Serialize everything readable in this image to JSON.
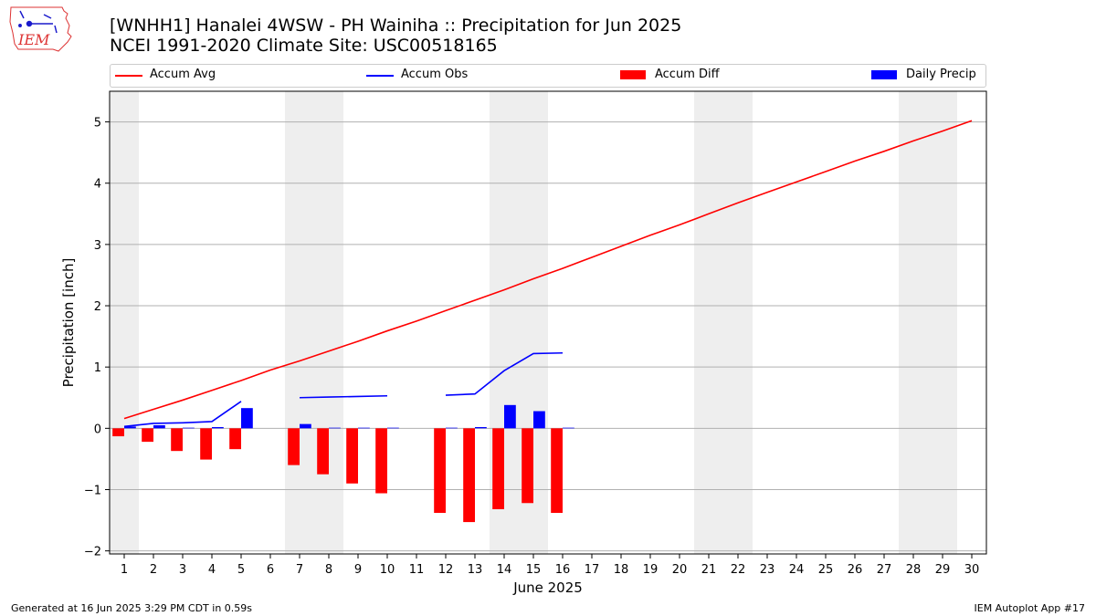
{
  "header": {
    "title_line1": "[WNHH1] Hanalei 4WSW - PH Wainiha :: Precipitation for Jun 2025",
    "title_line2": "NCEI 1991-2020 Climate Site: USC00518165",
    "logo_text": "IEM"
  },
  "footer": {
    "left": "Generated at 16 Jun 2025 3:29 PM CDT in 0.59s",
    "right": "IEM Autoplot App #17"
  },
  "colors": {
    "accum_avg": "#ff0000",
    "accum_obs": "#0000ff",
    "accum_diff": "#ff0000",
    "daily_precip": "#0000ff",
    "weekend_shade": "#eeeeee",
    "grid": "#b0b0b0"
  },
  "chart_data": {
    "type": "bar",
    "xlabel": "June 2025",
    "ylabel": "Precipitation [inch]",
    "xlim": [
      0.5,
      30.5
    ],
    "ylim": [
      -2.05,
      5.5
    ],
    "yticks": [
      -2,
      -1,
      0,
      1,
      2,
      3,
      4,
      5
    ],
    "ytick_labels": [
      "−2",
      "−1",
      "0",
      "1",
      "2",
      "3",
      "4",
      "5"
    ],
    "xticks": [
      1,
      2,
      3,
      4,
      5,
      6,
      7,
      8,
      9,
      10,
      11,
      12,
      13,
      14,
      15,
      16,
      17,
      18,
      19,
      20,
      21,
      22,
      23,
      24,
      25,
      26,
      27,
      28,
      29,
      30
    ],
    "grid": "horizontal",
    "legend_position": "top",
    "weekend_days": [
      1,
      7,
      8,
      14,
      15,
      21,
      22,
      28,
      29
    ],
    "series": [
      {
        "name": "Accum Avg",
        "kind": "line",
        "x": [
          1,
          2,
          3,
          4,
          5,
          6,
          7,
          8,
          9,
          10,
          11,
          12,
          13,
          14,
          15,
          16,
          17,
          18,
          19,
          20,
          21,
          22,
          23,
          24,
          25,
          26,
          27,
          28,
          29,
          30
        ],
        "values": [
          0.16,
          0.31,
          0.46,
          0.62,
          0.78,
          0.95,
          1.1,
          1.26,
          1.42,
          1.59,
          1.75,
          1.92,
          2.09,
          2.26,
          2.44,
          2.61,
          2.79,
          2.97,
          3.15,
          3.32,
          3.5,
          3.68,
          3.85,
          4.02,
          4.19,
          4.36,
          4.52,
          4.69,
          4.85,
          5.02
        ]
      },
      {
        "name": "Accum Obs",
        "kind": "line",
        "segments": [
          {
            "x": [
              1,
              2,
              3,
              4,
              5
            ],
            "values": [
              0.03,
              0.08,
              0.09,
              0.11,
              0.44
            ]
          },
          {
            "x": [
              7,
              8,
              9,
              10
            ],
            "values": [
              0.5,
              0.51,
              0.52,
              0.53
            ]
          },
          {
            "x": [
              12,
              13,
              14,
              15,
              16
            ],
            "values": [
              0.54,
              0.56,
              0.94,
              1.22,
              1.23
            ]
          }
        ]
      },
      {
        "name": "Accum Diff",
        "kind": "bar",
        "offset": -0.2,
        "x": [
          1,
          2,
          3,
          4,
          5,
          7,
          8,
          9,
          10,
          12,
          13,
          14,
          15,
          16
        ],
        "values": [
          -0.13,
          -0.22,
          -0.37,
          -0.51,
          -0.34,
          -0.6,
          -0.75,
          -0.9,
          -1.06,
          -1.38,
          -1.53,
          -1.32,
          -1.22,
          -1.38
        ]
      },
      {
        "name": "Daily Precip",
        "kind": "bar",
        "offset": 0.2,
        "x": [
          1,
          2,
          3,
          4,
          5,
          7,
          8,
          9,
          10,
          12,
          13,
          14,
          15,
          16
        ],
        "values": [
          0.03,
          0.05,
          0.01,
          0.02,
          0.33,
          0.07,
          0.01,
          0.01,
          0.01,
          0.01,
          0.02,
          0.38,
          0.28,
          0.01
        ]
      }
    ]
  }
}
